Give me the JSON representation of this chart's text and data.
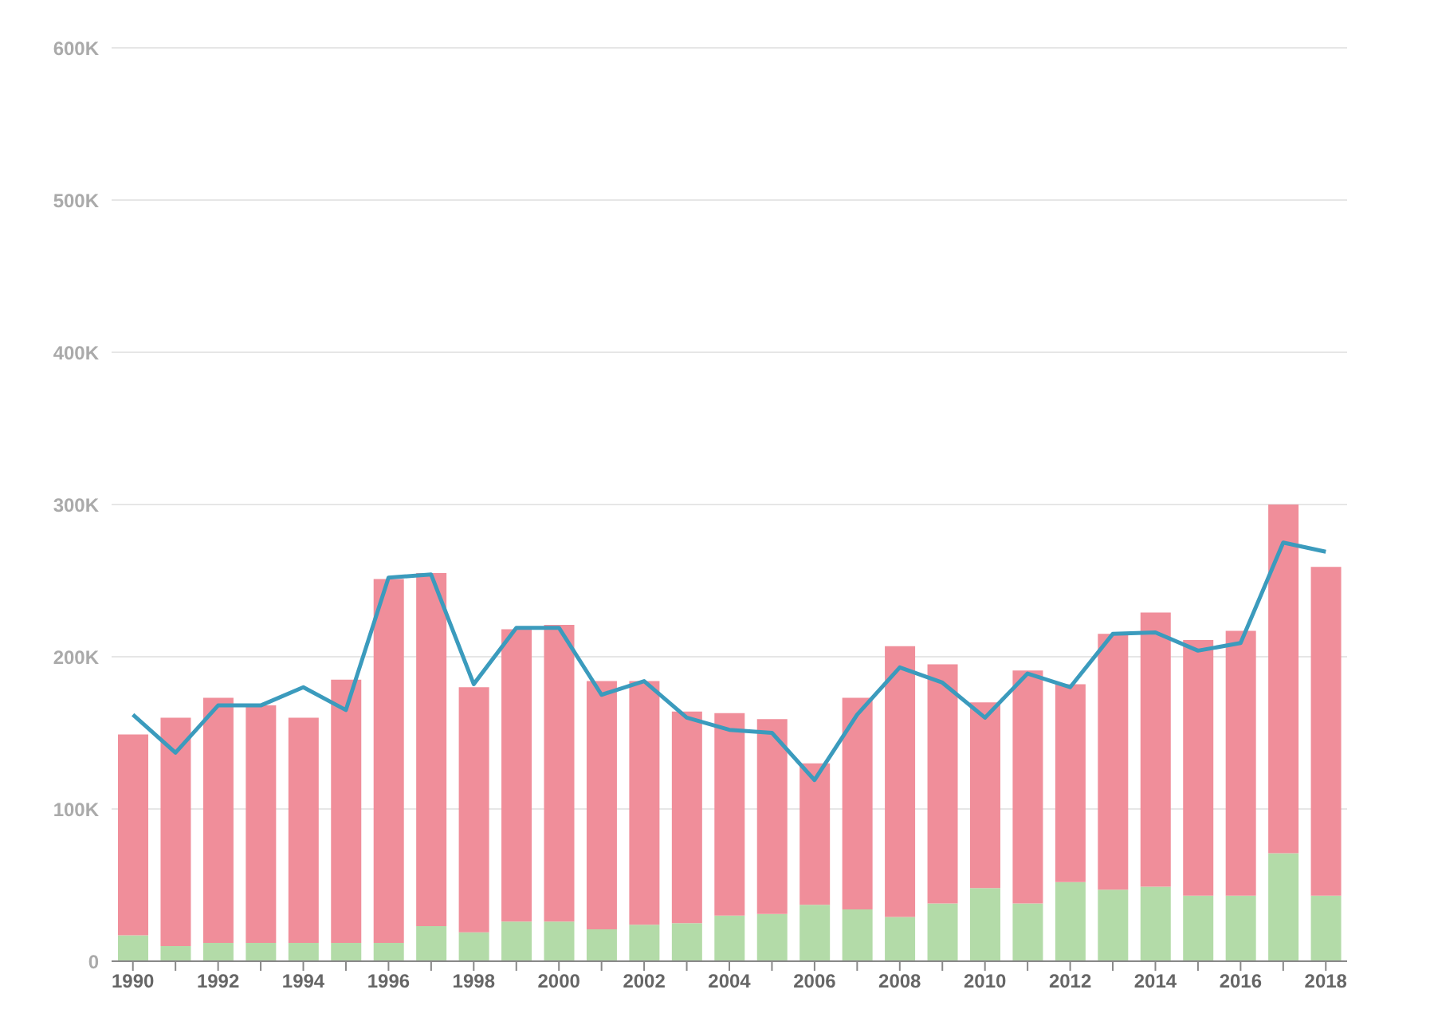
{
  "chart_data": {
    "type": "bar",
    "stacked": true,
    "categories": [
      "1990",
      null,
      "1992",
      null,
      "1994",
      null,
      "1996",
      null,
      "1998",
      null,
      "2000",
      null,
      "2002",
      null,
      "2004",
      null,
      "2006",
      null,
      "2008",
      null,
      "2010",
      null,
      "2012",
      null,
      "2014",
      null,
      "2016",
      null,
      "2018"
    ],
    "series": [
      {
        "color": "#b3dba8",
        "values": [
          17,
          10,
          12,
          12,
          12,
          12,
          12,
          23,
          19,
          26,
          26,
          21,
          24,
          25,
          30,
          31,
          37,
          34,
          29,
          38,
          48,
          38,
          52,
          47,
          49,
          43,
          43,
          71,
          43
        ]
      },
      {
        "color": "#f08e9a",
        "values": [
          132,
          150,
          161,
          156,
          148,
          173,
          239,
          232,
          161,
          192,
          195,
          163,
          160,
          139,
          133,
          128,
          93,
          139,
          178,
          157,
          122,
          153,
          130,
          168,
          180,
          168,
          174,
          229,
          216
        ]
      },
      {
        "type": "line",
        "color": "#3b9bbd",
        "values": [
          162,
          137,
          168,
          168,
          180,
          165,
          252,
          254,
          182,
          219,
          219,
          175,
          184,
          160,
          152,
          150,
          119,
          162,
          193,
          183,
          160,
          189,
          180,
          215,
          216,
          204,
          209,
          275,
          269
        ]
      }
    ],
    "ylim": [
      0,
      600
    ],
    "yticks": [
      {
        "value": 0,
        "label": "0"
      },
      {
        "value": 100,
        "label": "100K"
      },
      {
        "value": 200,
        "label": "200K"
      },
      {
        "value": 300,
        "label": "300K"
      },
      {
        "value": 400,
        "label": "400K"
      },
      {
        "value": 500,
        "label": "500K"
      },
      {
        "value": 600,
        "label": "600K"
      }
    ],
    "grid": "y",
    "marker": "none",
    "line_style": "solid"
  }
}
